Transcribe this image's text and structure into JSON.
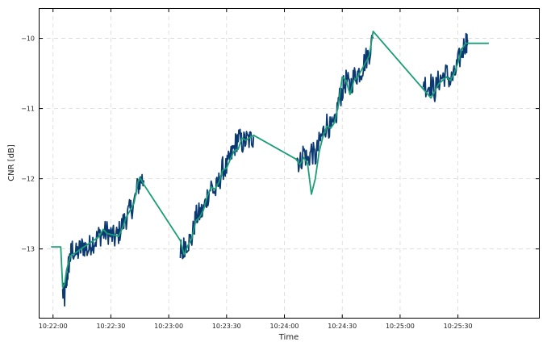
{
  "chart_data": {
    "type": "line",
    "title": "",
    "xlabel": "Time",
    "ylabel": "CNR [dB]",
    "x_ticks": [
      "10:22:00",
      "10:22:30",
      "10:23:00",
      "10:23:30",
      "10:24:00",
      "10:24:30",
      "10:25:00",
      "10:25:30"
    ],
    "y_ticks": [
      -13,
      -12,
      -11,
      -10
    ],
    "xlim": [
      "10:21:53",
      "10:26:12"
    ],
    "ylim": [
      -13.98,
      -9.58
    ],
    "grid": true,
    "legend": "none",
    "series": [
      {
        "style": "noisy",
        "color": "#0b3a73",
        "points": [
          [
            "10:22:05",
            -13.62
          ],
          [
            "10:22:06",
            -13.7
          ],
          [
            "10:22:07",
            -13.45
          ],
          [
            "10:22:08",
            -13.25
          ],
          [
            "10:22:09",
            -13.1
          ],
          [
            "10:22:10",
            -13.0
          ],
          [
            "10:22:12",
            -13.08
          ],
          [
            "10:22:14",
            -13.0
          ],
          [
            "10:22:16",
            -12.95
          ],
          [
            "10:22:18",
            -13.02
          ],
          [
            "10:22:20",
            -12.9
          ],
          [
            "10:22:22",
            -12.88
          ],
          [
            "10:22:24",
            -12.8
          ],
          [
            "10:22:26",
            -12.78
          ],
          [
            "10:22:28",
            -12.75
          ],
          [
            "10:22:30",
            -12.8
          ],
          [
            "10:22:32",
            -12.85
          ],
          [
            "10:22:34",
            -12.78
          ],
          [
            "10:22:36",
            -12.65
          ],
          [
            "10:22:38",
            -12.55
          ],
          [
            "10:22:40",
            -12.45
          ],
          [
            "10:22:42",
            -12.35
          ],
          [
            "10:22:44",
            -12.1
          ],
          [
            "10:22:46",
            -12.0
          ],
          [
            "10:22:47",
            -12.02
          ],
          null,
          [
            "10:23:06",
            -13.0
          ],
          [
            "10:23:07",
            -13.1
          ],
          [
            "10:23:08",
            -12.95
          ],
          [
            "10:23:10",
            -12.9
          ],
          [
            "10:23:12",
            -12.85
          ],
          [
            "10:23:14",
            -12.55
          ],
          [
            "10:23:16",
            -12.5
          ],
          [
            "10:23:18",
            -12.45
          ],
          [
            "10:23:20",
            -12.25
          ],
          [
            "10:23:22",
            -12.1
          ],
          [
            "10:23:24",
            -12.2
          ],
          [
            "10:23:26",
            -12.05
          ],
          [
            "10:23:28",
            -11.85
          ],
          [
            "10:23:30",
            -11.85
          ],
          [
            "10:23:32",
            -11.7
          ],
          [
            "10:23:34",
            -11.55
          ],
          [
            "10:23:36",
            -11.4
          ],
          [
            "10:23:38",
            -11.5
          ],
          [
            "10:23:40",
            -11.45
          ],
          [
            "10:23:42",
            -11.45
          ],
          [
            "10:23:44",
            -11.4
          ],
          null,
          [
            "10:24:06",
            -11.65
          ],
          [
            "10:24:08",
            -11.8
          ],
          [
            "10:24:10",
            -11.6
          ],
          [
            "10:24:12",
            -11.75
          ],
          [
            "10:24:14",
            -11.6
          ],
          [
            "10:24:16",
            -11.7
          ],
          [
            "10:24:18",
            -11.5
          ],
          [
            "10:24:20",
            -11.35
          ],
          [
            "10:24:22",
            -11.2
          ],
          [
            "10:24:24",
            -11.3
          ],
          [
            "10:24:26",
            -11.25
          ],
          [
            "10:24:28",
            -10.9
          ],
          [
            "10:24:30",
            -10.75
          ],
          [
            "10:24:32",
            -10.6
          ],
          [
            "10:24:34",
            -10.7
          ],
          [
            "10:24:36",
            -10.55
          ],
          [
            "10:24:38",
            -10.5
          ],
          [
            "10:24:40",
            -10.45
          ],
          [
            "10:24:42",
            -10.3
          ],
          [
            "10:24:44",
            -10.2
          ],
          [
            "10:24:46",
            -10.0
          ],
          null,
          [
            "10:25:12",
            -10.6
          ],
          [
            "10:25:14",
            -10.7
          ],
          [
            "10:25:16",
            -10.65
          ],
          [
            "10:25:18",
            -10.75
          ],
          [
            "10:25:20",
            -10.6
          ],
          [
            "10:25:22",
            -10.55
          ],
          [
            "10:25:24",
            -10.5
          ],
          [
            "10:25:26",
            -10.6
          ],
          [
            "10:25:28",
            -10.55
          ],
          [
            "10:25:30",
            -10.35
          ],
          [
            "10:25:32",
            -10.2
          ],
          [
            "10:25:34",
            -10.05
          ],
          [
            "10:25:35",
            -10.02
          ]
        ]
      },
      {
        "style": "smooth",
        "color": "#1b9e77",
        "points": [
          [
            "10:21:59",
            -12.97
          ],
          [
            "10:22:04",
            -12.97
          ],
          [
            "10:22:05",
            -13.55
          ],
          [
            "10:22:06",
            -13.5
          ],
          [
            "10:22:07",
            -13.3
          ],
          [
            "10:22:09",
            -13.1
          ],
          [
            "10:22:12",
            -13.05
          ],
          [
            "10:22:16",
            -12.97
          ],
          [
            "10:22:20",
            -12.9
          ],
          [
            "10:22:24",
            -12.82
          ],
          [
            "10:22:26",
            -12.72
          ],
          [
            "10:22:28",
            -12.78
          ],
          [
            "10:22:31",
            -12.8
          ],
          [
            "10:22:34",
            -12.82
          ],
          [
            "10:22:36",
            -12.7
          ],
          [
            "10:22:38",
            -12.55
          ],
          [
            "10:22:40",
            -12.45
          ],
          [
            "10:22:42",
            -12.35
          ],
          [
            "10:22:44",
            -12.05
          ],
          [
            "10:22:45",
            -11.98
          ],
          [
            "10:22:47",
            -12.08
          ],
          [
            "10:23:06",
            -12.88
          ],
          [
            "10:23:08",
            -13.08
          ],
          [
            "10:23:10",
            -12.95
          ],
          [
            "10:23:12",
            -12.85
          ],
          [
            "10:23:14",
            -12.6
          ],
          [
            "10:23:16",
            -12.55
          ],
          [
            "10:23:18",
            -12.45
          ],
          [
            "10:23:20",
            -12.25
          ],
          [
            "10:23:22",
            -12.12
          ],
          [
            "10:23:24",
            -12.15
          ],
          [
            "10:23:26",
            -12.05
          ],
          [
            "10:23:28",
            -11.88
          ],
          [
            "10:23:30",
            -11.85
          ],
          [
            "10:23:32",
            -11.72
          ],
          [
            "10:23:34",
            -11.6
          ],
          [
            "10:23:36",
            -11.58
          ],
          [
            "10:23:38",
            -11.42
          ],
          [
            "10:23:40",
            -11.45
          ],
          [
            "10:23:44",
            -11.38
          ],
          [
            "10:24:06",
            -11.72
          ],
          [
            "10:24:08",
            -11.8
          ],
          [
            "10:24:10",
            -11.7
          ],
          [
            "10:24:12",
            -11.78
          ],
          [
            "10:24:14",
            -12.22
          ],
          [
            "10:24:16",
            -12.0
          ],
          [
            "10:24:18",
            -11.62
          ],
          [
            "10:24:20",
            -11.4
          ],
          [
            "10:24:22",
            -11.25
          ],
          [
            "10:24:24",
            -11.28
          ],
          [
            "10:24:26",
            -11.2
          ],
          [
            "10:24:28",
            -10.95
          ],
          [
            "10:24:30",
            -10.55
          ],
          [
            "10:24:32",
            -10.6
          ],
          [
            "10:24:34",
            -10.8
          ],
          [
            "10:24:36",
            -10.6
          ],
          [
            "10:24:38",
            -10.55
          ],
          [
            "10:24:40",
            -10.45
          ],
          [
            "10:24:42",
            -10.35
          ],
          [
            "10:24:44",
            -10.25
          ],
          [
            "10:24:46",
            -9.9
          ],
          [
            "10:25:16",
            -10.85
          ],
          [
            "10:25:20",
            -10.65
          ],
          [
            "10:25:24",
            -10.55
          ],
          [
            "10:25:26",
            -10.6
          ],
          [
            "10:25:28",
            -10.5
          ],
          [
            "10:25:30",
            -10.35
          ],
          [
            "10:25:32",
            -10.15
          ],
          [
            "10:25:34",
            -10.07
          ],
          [
            "10:25:38",
            -10.07
          ],
          [
            "10:25:46",
            -10.07
          ]
        ]
      }
    ]
  }
}
